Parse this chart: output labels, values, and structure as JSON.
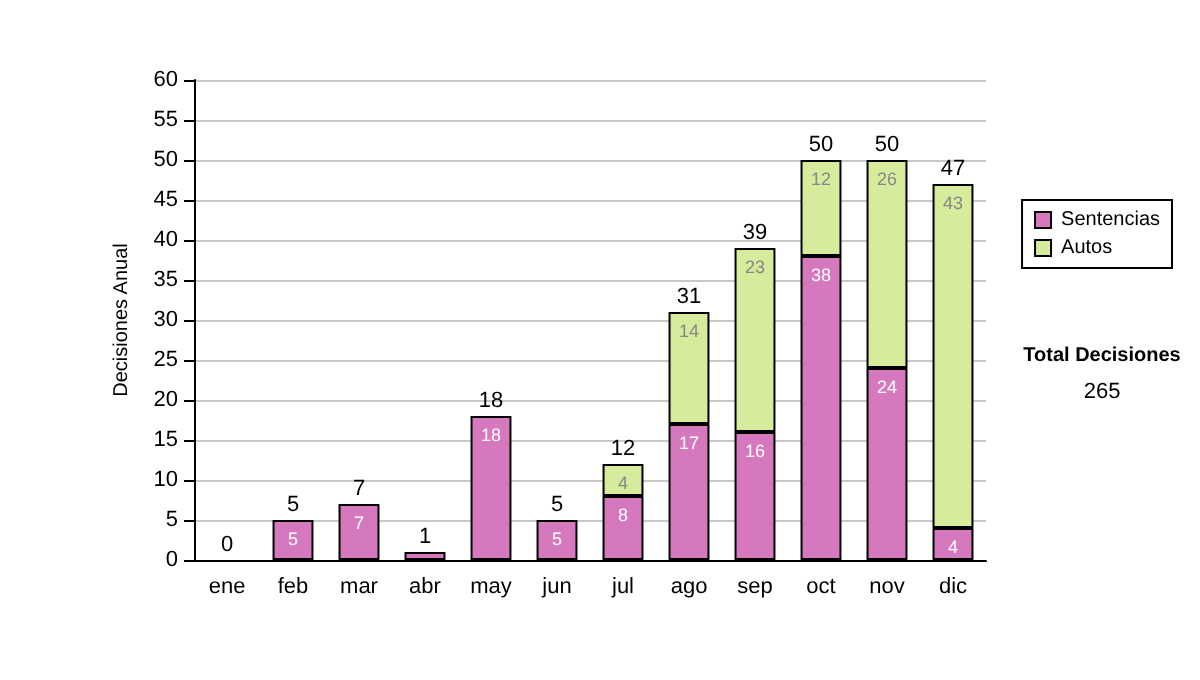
{
  "chart_data": {
    "type": "bar",
    "ylabel": "Decisiones Anual",
    "categories": [
      "ene",
      "feb",
      "mar",
      "abr",
      "may",
      "jun",
      "jul",
      "ago",
      "sep",
      "oct",
      "nov",
      "dic"
    ],
    "stacked": true,
    "series": [
      {
        "name": "Sentencias",
        "color": "#d678be",
        "values": [
          0,
          5,
          7,
          1,
          18,
          5,
          8,
          17,
          16,
          38,
          24,
          4
        ],
        "value_labels": [
          null,
          "5",
          "7",
          null,
          "18",
          "5",
          "8",
          "17",
          "16",
          "38",
          "24",
          "4"
        ]
      },
      {
        "name": "Autos",
        "color": "#d6eb9c",
        "values": [
          0,
          0,
          0,
          0,
          0,
          0,
          4,
          14,
          23,
          12,
          26,
          43
        ],
        "value_labels": [
          null,
          null,
          null,
          null,
          null,
          null,
          "4",
          "14",
          "23",
          "12",
          "26",
          "43"
        ]
      }
    ],
    "totals": [
      "0",
      "5",
      "7",
      "1",
      "18",
      "5",
      "12",
      "31",
      "39",
      "50",
      "50",
      "47"
    ],
    "ylim": [
      0,
      60
    ],
    "yticks": [
      0,
      5,
      10,
      15,
      20,
      25,
      30,
      35,
      40,
      45,
      50,
      55,
      60
    ],
    "grid": "y",
    "legend": "top right",
    "annotations": [
      "Total Decisiones",
      "265"
    ]
  }
}
